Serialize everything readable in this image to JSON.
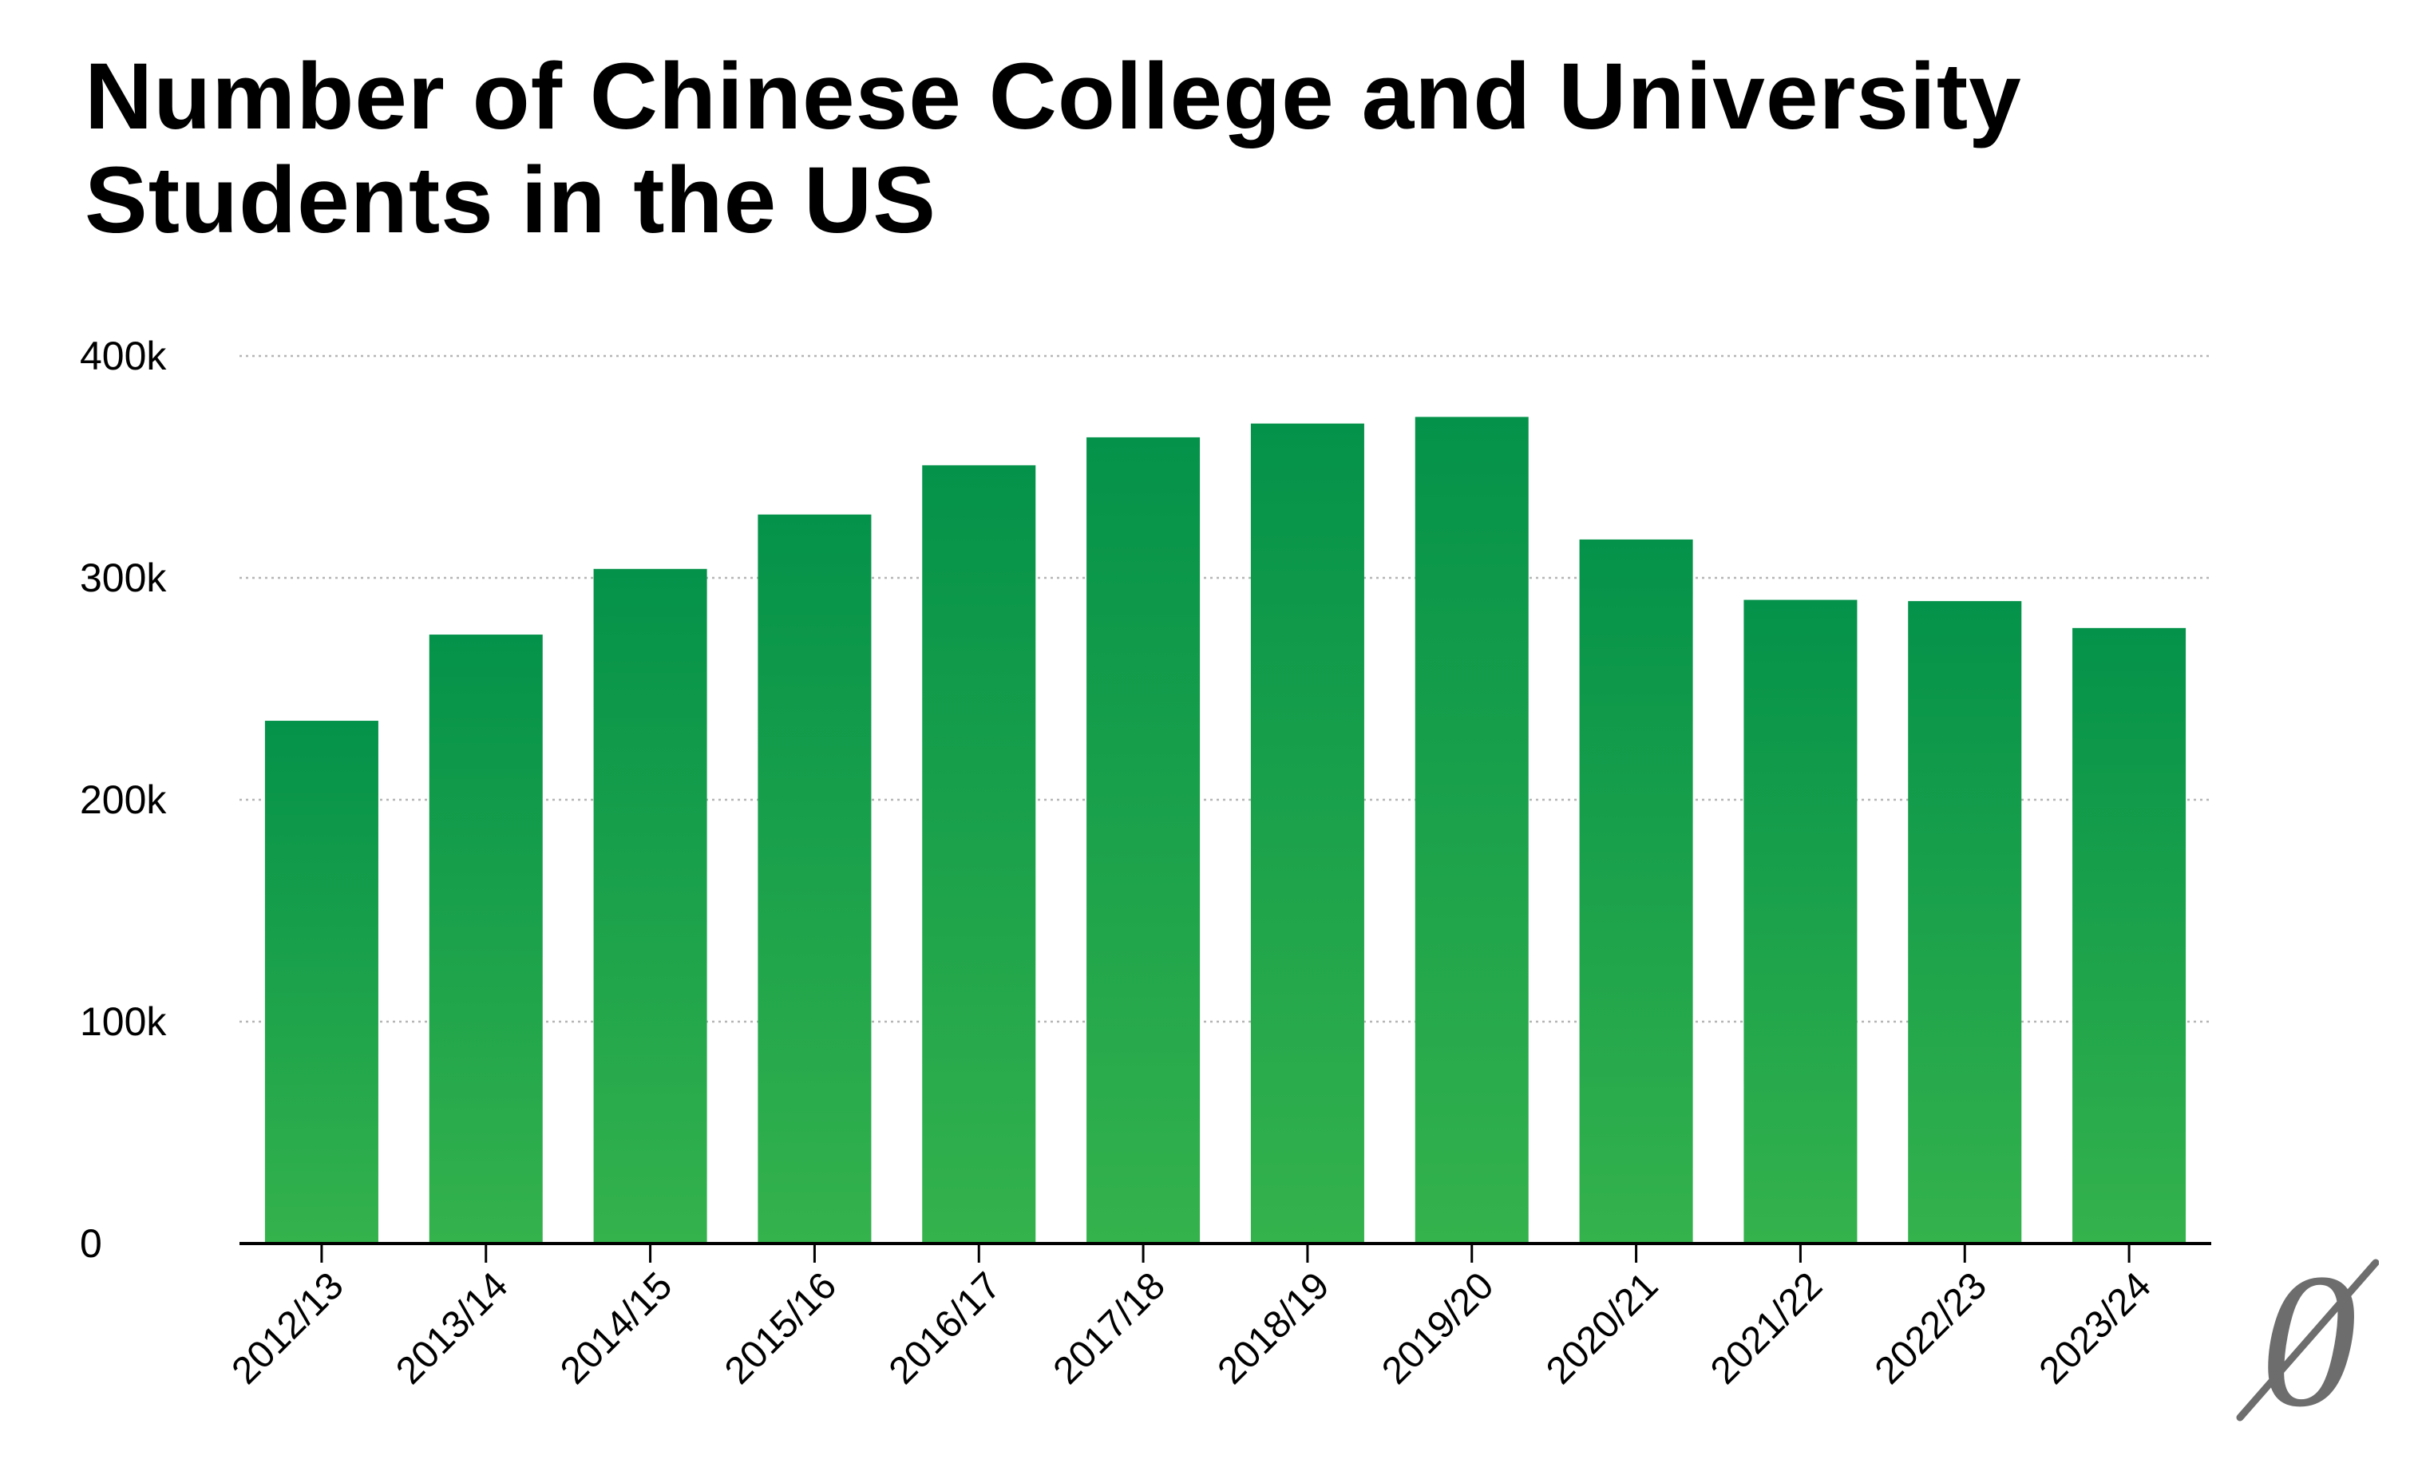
{
  "chart_data": {
    "type": "bar",
    "title": "Number of Chinese College and University Students in the US",
    "xlabel": "",
    "ylabel": "",
    "categories": [
      "2012/13",
      "2013/14",
      "2014/15",
      "2015/16",
      "2016/17",
      "2017/18",
      "2018/19",
      "2019/20",
      "2020/21",
      "2021/22",
      "2022/23",
      "2023/24"
    ],
    "values": [
      235597,
      274439,
      304040,
      328547,
      350755,
      363341,
      369548,
      372532,
      317299,
      290086,
      289526,
      277398
    ],
    "ylim": [
      0,
      400000
    ],
    "yticks": [
      0,
      100000,
      200000,
      300000,
      400000
    ],
    "ytick_labels": [
      "0",
      "100k",
      "200k",
      "300k",
      "400k"
    ],
    "grid": true,
    "legend": "none",
    "colors": {
      "bar_top": "#04924A",
      "bar_bottom": "#34B24C",
      "grid": "#B5B5B5",
      "axis": "#000000",
      "text": "#000000",
      "logo": "#6D6D6D"
    }
  }
}
